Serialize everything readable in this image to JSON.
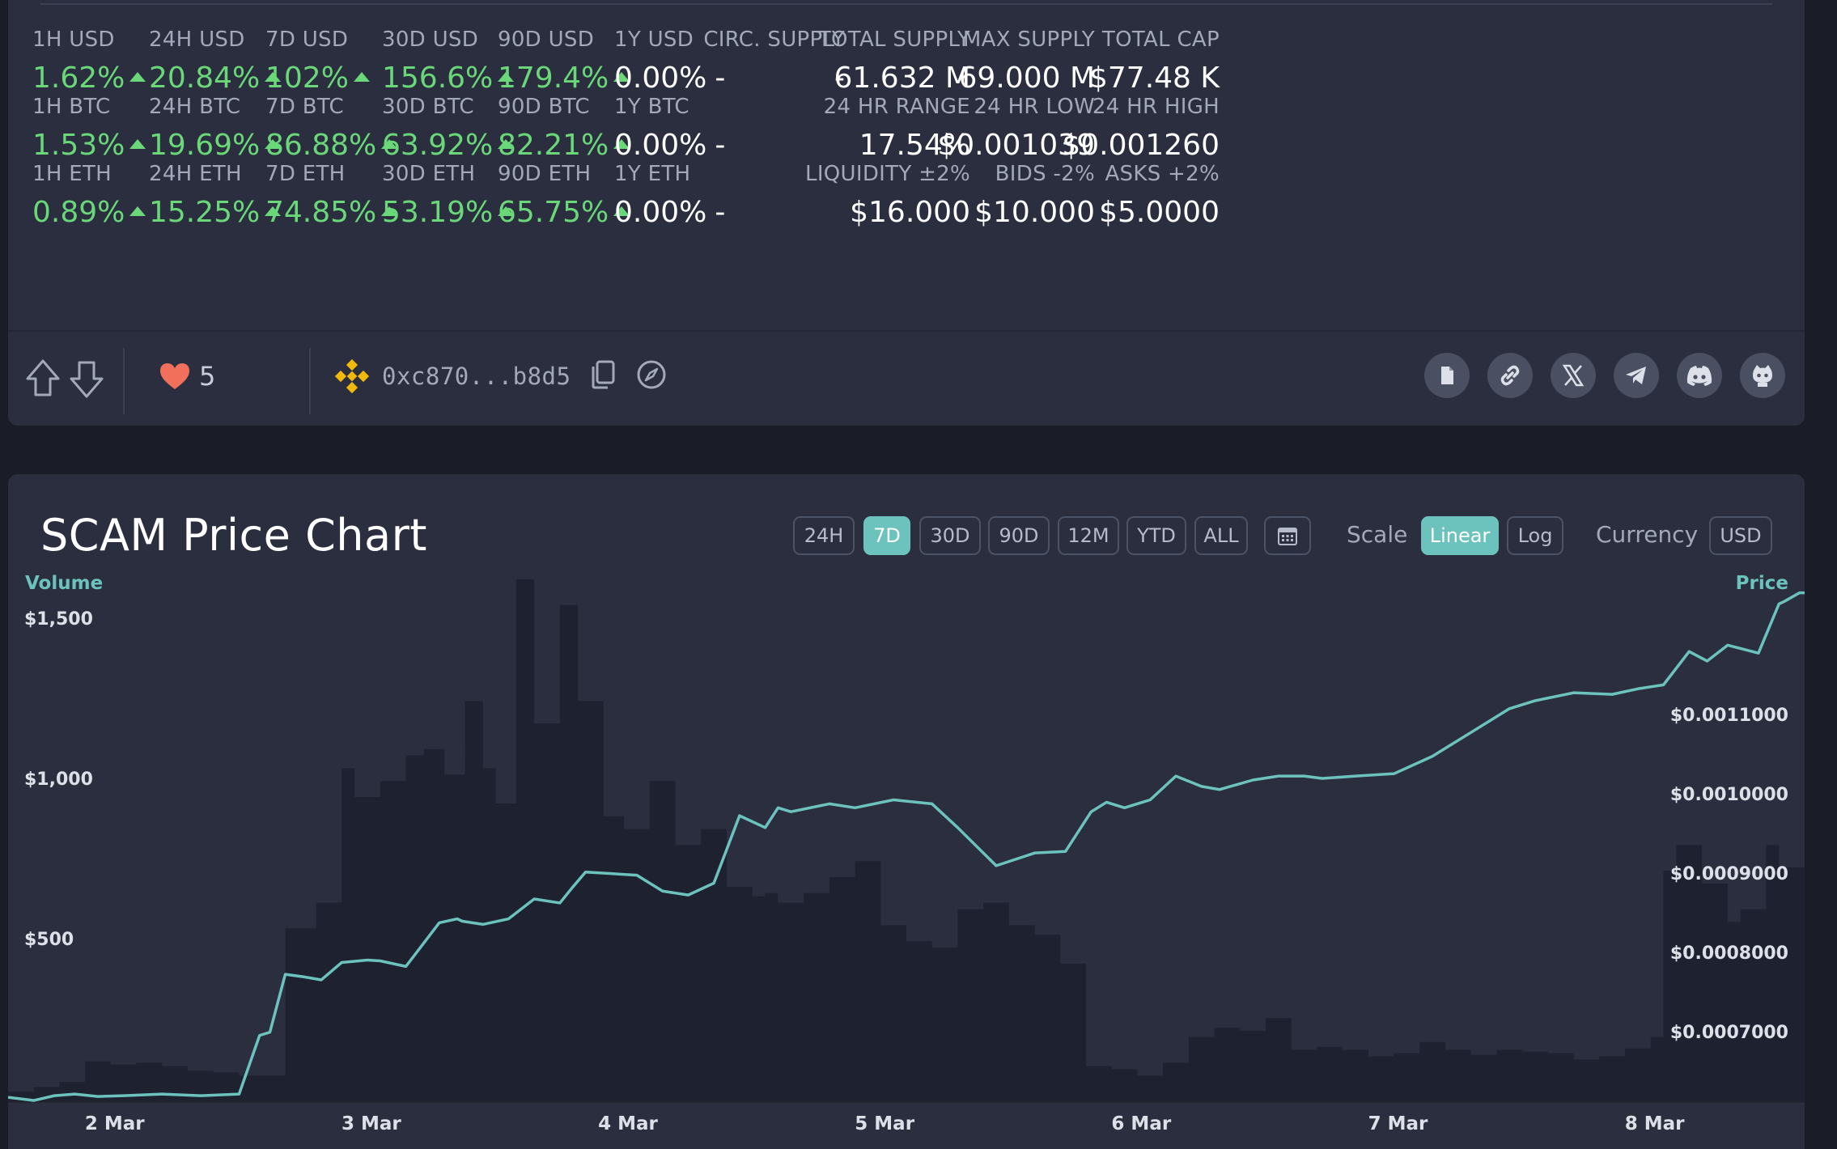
{
  "stats": {
    "rows": [
      [
        {
          "label": "1H USD",
          "value": "1.62%",
          "trend": "up"
        },
        {
          "label": "24H USD",
          "value": "20.84%",
          "trend": "up"
        },
        {
          "label": "7D USD",
          "value": "102%",
          "trend": "up"
        },
        {
          "label": "30D USD",
          "value": "156.6%",
          "trend": "up"
        },
        {
          "label": "90D USD",
          "value": "179.4%",
          "trend": "up"
        },
        {
          "label": "1Y USD",
          "value": "0.00%",
          "trend": "flat",
          "suffix": "-"
        }
      ],
      [
        {
          "label": "1H BTC",
          "value": "1.53%",
          "trend": "up"
        },
        {
          "label": "24H BTC",
          "value": "19.69%",
          "trend": "up"
        },
        {
          "label": "7D BTC",
          "value": "86.88%",
          "trend": "up"
        },
        {
          "label": "30D BTC",
          "value": "63.92%",
          "trend": "up"
        },
        {
          "label": "90D BTC",
          "value": "82.21%",
          "trend": "up"
        },
        {
          "label": "1Y BTC",
          "value": "0.00%",
          "trend": "flat",
          "suffix": "-"
        }
      ],
      [
        {
          "label": "1H ETH",
          "value": "0.89%",
          "trend": "up"
        },
        {
          "label": "24H ETH",
          "value": "15.25%",
          "trend": "up"
        },
        {
          "label": "7D ETH",
          "value": "74.85%",
          "trend": "up"
        },
        {
          "label": "30D ETH",
          "value": "53.19%",
          "trend": "up"
        },
        {
          "label": "90D ETH",
          "value": "65.75%",
          "trend": "up"
        },
        {
          "label": "1Y ETH",
          "value": "0.00%",
          "trend": "flat",
          "suffix": "-"
        }
      ]
    ],
    "right_rows": [
      [
        {
          "label": "CIRC. SUPPLY",
          "value": "-"
        },
        {
          "label": "TOTAL SUPPLY",
          "value": "61.632 M"
        },
        {
          "label": "MAX SUPPLY",
          "value": "69.000 M"
        },
        {
          "label": "TOTAL CAP",
          "value": "$77.48 K"
        }
      ],
      [
        {
          "label": "24 HR RANGE",
          "value": "17.54%"
        },
        {
          "label": "24 HR LOW",
          "value": "$0.001039"
        },
        {
          "label": "24 HR HIGH",
          "value": "$0.001260"
        }
      ],
      [
        {
          "label": "LIQUIDITY ±2%",
          "value": "$16.000"
        },
        {
          "label": "BIDS -2%",
          "value": "$10.000"
        },
        {
          "label": "ASKS +2%",
          "value": "$5.0000"
        }
      ]
    ]
  },
  "actions": {
    "upvote_icon": "arrow-up-outline-icon",
    "downvote_icon": "arrow-down-outline-icon",
    "likes": "5",
    "chain_icon": "binance-icon",
    "address": "0xc870...b8d5",
    "copy_icon": "copy-icon",
    "explorer_icon": "compass-icon",
    "socials": [
      "document-icon",
      "link-icon",
      "x-icon",
      "telegram-icon",
      "discord-icon",
      "github-icon"
    ]
  },
  "chart": {
    "title": "SCAM Price Chart",
    "ranges": [
      "24H",
      "7D",
      "30D",
      "90D",
      "12M",
      "YTD",
      "ALL"
    ],
    "active_range": "7D",
    "calendar_icon": "calendar-icon",
    "scale_label": "Scale",
    "scales": [
      "Linear",
      "Log"
    ],
    "active_scale": "Linear",
    "currency_label": "Currency",
    "currency": "USD",
    "volume_caption": "Volume",
    "price_caption": "Price"
  },
  "colors": {
    "accent": "#6cc3be",
    "positive": "#6ad779",
    "panel": "#2a2e3e",
    "volume_fill": "#1e2130",
    "price_line": "#6cc3be",
    "heart": "#f0705c",
    "binance": "#f0b90b"
  },
  "chart_data": {
    "type": "line",
    "x_ticks": [
      "2 Mar",
      "3 Mar",
      "4 Mar",
      "5 Mar",
      "6 Mar",
      "7 Mar",
      "8 Mar"
    ],
    "volume_axis": {
      "ticks": [
        "$1,500",
        "$1,000",
        "$500"
      ],
      "tick_values": [
        1500,
        1000,
        500
      ],
      "range": [
        0,
        1630
      ]
    },
    "price_axis": {
      "ticks": [
        "$0.0011000",
        "$0.0010000",
        "$0.0009000",
        "$0.0008000",
        "$0.0007000"
      ],
      "tick_values": [
        0.0011,
        0.001,
        0.0009,
        0.0008,
        0.0007
      ],
      "range": [
        0.000615,
        0.001273
      ]
    },
    "x_range": [
      1.6,
      8.6
    ],
    "series": [
      {
        "name": "Price",
        "x": [
          1.6,
          1.7,
          1.78,
          1.86,
          1.95,
          2.05,
          2.2,
          2.35,
          2.5,
          2.58,
          2.62,
          2.68,
          2.75,
          2.82,
          2.9,
          3.0,
          3.05,
          3.15,
          3.28,
          3.35,
          3.37,
          3.45,
          3.55,
          3.65,
          3.75,
          3.8,
          3.85,
          3.95,
          4.05,
          4.15,
          4.25,
          4.35,
          4.45,
          4.55,
          4.6,
          4.65,
          4.8,
          4.9,
          5.05,
          5.2,
          5.3,
          5.45,
          5.6,
          5.72,
          5.78,
          5.82,
          5.88,
          5.95,
          6.05,
          6.15,
          6.25,
          6.32,
          6.45,
          6.55,
          6.65,
          6.72,
          6.85,
          7.0,
          7.15,
          7.3,
          7.45,
          7.55,
          7.7,
          7.85,
          7.95,
          8.05,
          8.15,
          8.22,
          8.3,
          8.42,
          8.5,
          8.52,
          8.58,
          8.6
        ],
        "values": [
          0.00062,
          0.000616,
          0.000622,
          0.000624,
          0.000621,
          0.000622,
          0.000624,
          0.000622,
          0.000624,
          0.000698,
          0.000702,
          0.000775,
          0.000772,
          0.000768,
          0.00079,
          0.000793,
          0.000792,
          0.000785,
          0.00084,
          0.000845,
          0.000842,
          0.000838,
          0.000845,
          0.00087,
          0.000865,
          0.000885,
          0.000904,
          0.000902,
          0.0009,
          0.00088,
          0.000875,
          0.00089,
          0.000975,
          0.00096,
          0.000985,
          0.00098,
          0.00099,
          0.000985,
          0.000995,
          0.00099,
          0.00096,
          0.000912,
          0.000928,
          0.00093,
          0.00096,
          0.00098,
          0.000992,
          0.000985,
          0.000995,
          0.001025,
          0.001012,
          0.001008,
          0.00102,
          0.001025,
          0.001025,
          0.001022,
          0.001025,
          0.001028,
          0.00105,
          0.00108,
          0.00111,
          0.00112,
          0.00113,
          0.001128,
          0.001135,
          0.00114,
          0.001182,
          0.00117,
          0.00119,
          0.00118,
          0.001242,
          0.001245,
          0.001256,
          0.001256
        ]
      },
      {
        "name": "Volume",
        "x": [
          1.6,
          1.7,
          1.8,
          1.9,
          2.0,
          2.1,
          2.2,
          2.3,
          2.4,
          2.5,
          2.6,
          2.68,
          2.8,
          2.9,
          2.95,
          3.05,
          3.15,
          3.22,
          3.3,
          3.38,
          3.45,
          3.5,
          3.58,
          3.65,
          3.75,
          3.82,
          3.92,
          4.0,
          4.1,
          4.2,
          4.3,
          4.4,
          4.5,
          4.55,
          4.6,
          4.7,
          4.8,
          4.9,
          5.0,
          5.1,
          5.2,
          5.3,
          5.4,
          5.5,
          5.6,
          5.7,
          5.8,
          5.9,
          6.0,
          6.1,
          6.2,
          6.3,
          6.4,
          6.5,
          6.6,
          6.7,
          6.8,
          6.9,
          7.0,
          7.1,
          7.2,
          7.3,
          7.4,
          7.5,
          7.6,
          7.7,
          7.8,
          7.9,
          8.0,
          8.05,
          8.1,
          8.2,
          8.3,
          8.35,
          8.45,
          8.5,
          8.6
        ],
        "values": [
          30,
          45,
          60,
          125,
          115,
          120,
          110,
          95,
          90,
          80,
          80,
          540,
          620,
          1040,
          950,
          1000,
          1080,
          1100,
          1020,
          1250,
          1040,
          930,
          1630,
          1180,
          1550,
          1250,
          890,
          850,
          1000,
          800,
          850,
          670,
          640,
          650,
          620,
          650,
          700,
          750,
          550,
          500,
          480,
          600,
          620,
          550,
          520,
          430,
          110,
          100,
          80,
          120,
          200,
          230,
          220,
          260,
          160,
          170,
          160,
          140,
          150,
          185,
          160,
          145,
          160,
          155,
          150,
          130,
          140,
          165,
          200,
          720,
          800,
          680,
          560,
          600,
          800,
          730,
          710
        ]
      }
    ]
  }
}
